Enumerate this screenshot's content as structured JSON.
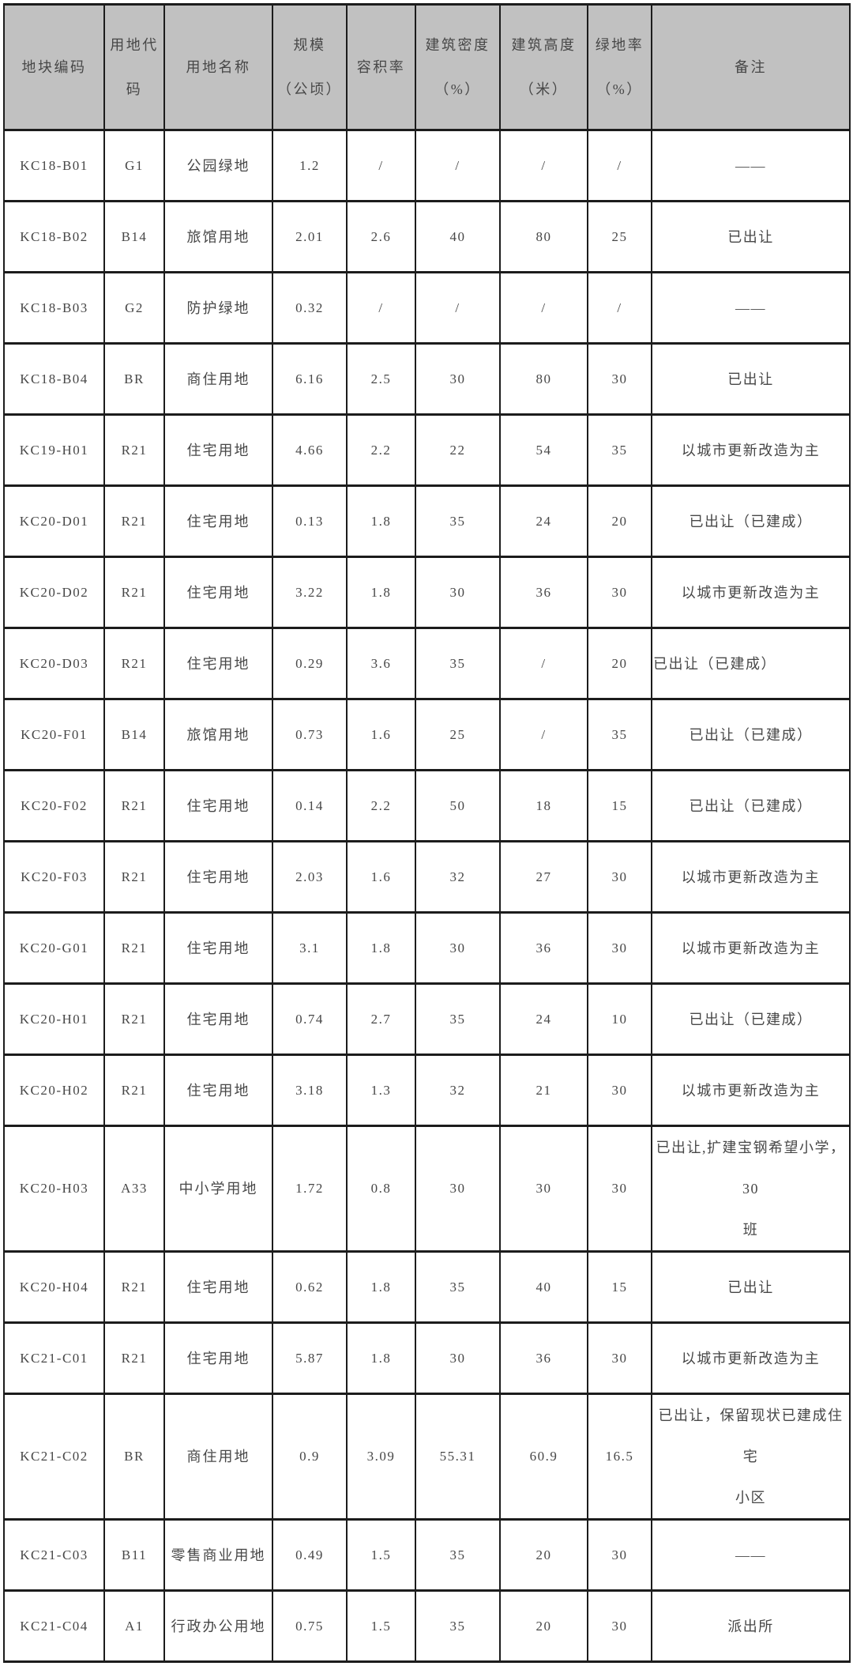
{
  "colors": {
    "header_bg": "#c1c1c1",
    "border": "#1c1c1c",
    "text": "#474747",
    "row_bg": "#ffffff"
  },
  "table": {
    "columns": [
      {
        "key": "code",
        "label": "地块编码"
      },
      {
        "key": "land_code",
        "label": "用地代\n码"
      },
      {
        "key": "land_name",
        "label": "用地名称"
      },
      {
        "key": "scale",
        "label": "规模\n（公顷）"
      },
      {
        "key": "far",
        "label": "容积率"
      },
      {
        "key": "density",
        "label": "建筑密度\n（%）"
      },
      {
        "key": "height_m",
        "label": "建筑高度\n（米）"
      },
      {
        "key": "green_rate",
        "label": "绿地率\n（%）"
      },
      {
        "key": "remark",
        "label": "备注"
      }
    ],
    "rows": [
      {
        "code": "KC18-B01",
        "land_code": "G1",
        "land_name": "公园绿地",
        "scale": "1.2",
        "far": "/",
        "density": "/",
        "height_m": "/",
        "green_rate": "/",
        "remark": "——"
      },
      {
        "code": "KC18-B02",
        "land_code": "B14",
        "land_name": "旅馆用地",
        "scale": "2.01",
        "far": "2.6",
        "density": "40",
        "height_m": "80",
        "green_rate": "25",
        "remark": "已出让"
      },
      {
        "code": "KC18-B03",
        "land_code": "G2",
        "land_name": "防护绿地",
        "scale": "0.32",
        "far": "/",
        "density": "/",
        "height_m": "/",
        "green_rate": "/",
        "remark": "——"
      },
      {
        "code": "KC18-B04",
        "land_code": "BR",
        "land_name": "商住用地",
        "scale": "6.16",
        "far": "2.5",
        "density": "30",
        "height_m": "80",
        "green_rate": "30",
        "remark": "已出让"
      },
      {
        "code": "KC19-H01",
        "land_code": "R21",
        "land_name": "住宅用地",
        "scale": "4.66",
        "far": "2.2",
        "density": "22",
        "height_m": "54",
        "green_rate": "35",
        "remark": "以城市更新改造为主"
      },
      {
        "code": "KC20-D01",
        "land_code": "R21",
        "land_name": "住宅用地",
        "scale": "0.13",
        "far": "1.8",
        "density": "35",
        "height_m": "24",
        "green_rate": "20",
        "remark": "已出让（已建成）"
      },
      {
        "code": "KC20-D02",
        "land_code": "R21",
        "land_name": "住宅用地",
        "scale": "3.22",
        "far": "1.8",
        "density": "30",
        "height_m": "36",
        "green_rate": "30",
        "remark": "以城市更新改造为主"
      },
      {
        "code": "KC20-D03",
        "land_code": "R21",
        "land_name": "住宅用地",
        "scale": "0.29",
        "far": "3.6",
        "density": "35",
        "height_m": "/",
        "green_rate": "20",
        "remark": "已出让（已建成）",
        "remark_align": "left"
      },
      {
        "code": "KC20-F01",
        "land_code": "B14",
        "land_name": "旅馆用地",
        "scale": "0.73",
        "far": "1.6",
        "density": "25",
        "height_m": "/",
        "green_rate": "35",
        "remark": "已出让（已建成）"
      },
      {
        "code": "KC20-F02",
        "land_code": "R21",
        "land_name": "住宅用地",
        "scale": "0.14",
        "far": "2.2",
        "density": "50",
        "height_m": "18",
        "green_rate": "15",
        "remark": "已出让（已建成）"
      },
      {
        "code": "KC20-F03",
        "land_code": "R21",
        "land_name": "住宅用地",
        "scale": "2.03",
        "far": "1.6",
        "density": "32",
        "height_m": "27",
        "green_rate": "30",
        "remark": "以城市更新改造为主"
      },
      {
        "code": "KC20-G01",
        "land_code": "R21",
        "land_name": "住宅用地",
        "scale": "3.1",
        "far": "1.8",
        "density": "30",
        "height_m": "36",
        "green_rate": "30",
        "remark": "以城市更新改造为主"
      },
      {
        "code": "KC20-H01",
        "land_code": "R21",
        "land_name": "住宅用地",
        "scale": "0.74",
        "far": "2.7",
        "density": "35",
        "height_m": "24",
        "green_rate": "10",
        "remark": "已出让（已建成）"
      },
      {
        "code": "KC20-H02",
        "land_code": "R21",
        "land_name": "住宅用地",
        "scale": "3.18",
        "far": "1.3",
        "density": "32",
        "height_m": "21",
        "green_rate": "30",
        "remark": "以城市更新改造为主"
      },
      {
        "code": "KC20-H03",
        "land_code": "A33",
        "land_name": "中小学用地",
        "scale": "1.72",
        "far": "0.8",
        "density": "30",
        "height_m": "30",
        "green_rate": "30",
        "remark": "已出让,扩建宝钢希望小学，30\n班",
        "tall": true
      },
      {
        "code": "KC20-H04",
        "land_code": "R21",
        "land_name": "住宅用地",
        "scale": "0.62",
        "far": "1.8",
        "density": "35",
        "height_m": "40",
        "green_rate": "15",
        "remark": "已出让"
      },
      {
        "code": "KC21-C01",
        "land_code": "R21",
        "land_name": "住宅用地",
        "scale": "5.87",
        "far": "1.8",
        "density": "30",
        "height_m": "36",
        "green_rate": "30",
        "remark": "以城市更新改造为主"
      },
      {
        "code": "KC21-C02",
        "land_code": "BR",
        "land_name": "商住用地",
        "scale": "0.9",
        "far": "3.09",
        "density": "55.31",
        "height_m": "60.9",
        "green_rate": "16.5",
        "remark": "已出让，保留现状已建成住宅\n小区",
        "tall": true
      },
      {
        "code": "KC21-C03",
        "land_code": "B11",
        "land_name": "零售商业用地",
        "scale": "0.49",
        "far": "1.5",
        "density": "35",
        "height_m": "20",
        "green_rate": "30",
        "remark": "——"
      },
      {
        "code": "KC21-C04",
        "land_code": "A1",
        "land_name": "行政办公用地",
        "scale": "0.75",
        "far": "1.5",
        "density": "35",
        "height_m": "20",
        "green_rate": "30",
        "remark": "派出所"
      }
    ]
  }
}
